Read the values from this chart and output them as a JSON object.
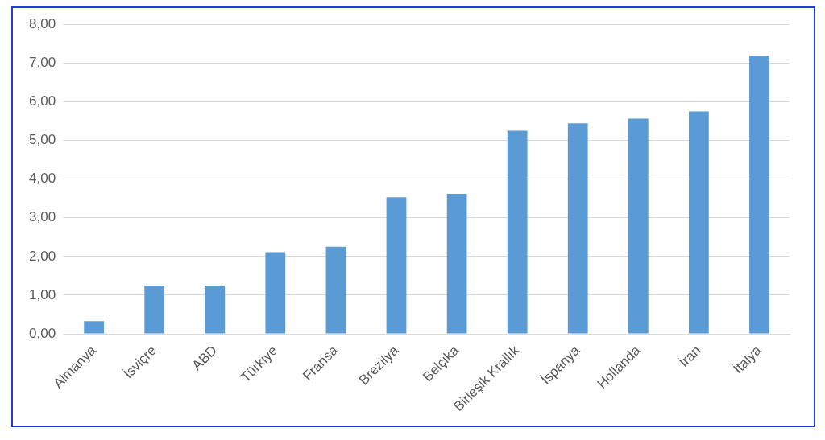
{
  "chart_data": {
    "type": "bar",
    "categories": [
      "Almanya",
      "İsviçre",
      "ABD",
      "Türkiye",
      "Fransa",
      "Brezilya",
      "Belçika",
      "Birleşik Krallık",
      "İspanya",
      "Hollanda",
      "İran",
      "İtalya"
    ],
    "values": [
      0.33,
      1.25,
      1.25,
      2.11,
      2.25,
      3.53,
      3.62,
      5.25,
      5.44,
      5.56,
      5.75,
      7.19
    ],
    "color": "#5b9bd5",
    "ylim": [
      0,
      8
    ],
    "yticks": [
      {
        "value": 0,
        "label": "0,00"
      },
      {
        "value": 1,
        "label": "1,00"
      },
      {
        "value": 2,
        "label": "2,00"
      },
      {
        "value": 3,
        "label": "3,00"
      },
      {
        "value": 4,
        "label": "4,00"
      },
      {
        "value": 5,
        "label": "5,00"
      },
      {
        "value": 6,
        "label": "6,00"
      },
      {
        "value": 7,
        "label": "7,00"
      },
      {
        "value": 8,
        "label": "8,00"
      }
    ],
    "grid": "y"
  }
}
